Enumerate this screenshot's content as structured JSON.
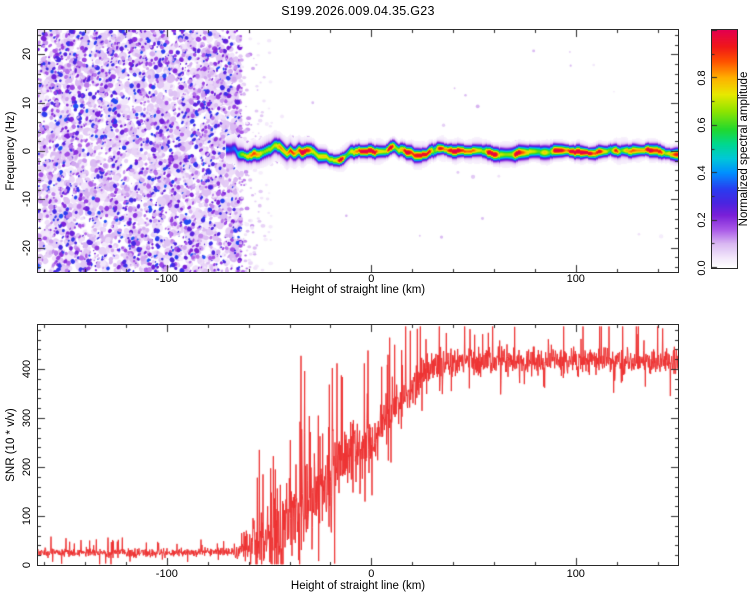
{
  "figure": {
    "title": "S199.2026.009.04.35.G23",
    "background": "#ffffff"
  },
  "colors": {
    "snr_line": "#ee3333",
    "axis": "#2a2a2a",
    "text": "#000000"
  },
  "render_seed": 20260409,
  "chart_data": [
    {
      "id": "doppler-spectrogram",
      "type": "heatmap",
      "xlabel": "Height of straight line (km)",
      "ylabel": "Frequency (Hz)",
      "xlim": [
        -163,
        150
      ],
      "ylim": [
        -25,
        25
      ],
      "xticks": [
        {
          "value": -100,
          "label": "-100"
        },
        {
          "value": 0,
          "label": "0"
        },
        {
          "value": 100,
          "label": "100"
        }
      ],
      "yticks": [
        {
          "value": -20,
          "label": "-20"
        },
        {
          "value": -10,
          "label": "-10"
        },
        {
          "value": 0,
          "label": "0"
        },
        {
          "value": 10,
          "label": "10"
        },
        {
          "value": 20,
          "label": "20"
        }
      ],
      "x_minor_step": 20,
      "y_minor_step": 2,
      "colorbar": {
        "label": "Normalized spectral amplitude",
        "range": [
          0,
          1
        ],
        "ticks": [
          {
            "value": 0.0,
            "label": "0.0"
          },
          {
            "value": 0.2,
            "label": "0.2"
          },
          {
            "value": 0.4,
            "label": "0.4"
          },
          {
            "value": 0.6,
            "label": "0.6"
          },
          {
            "value": 0.8,
            "label": "0.8"
          }
        ],
        "minor_step": 0.1
      },
      "colormap_stops": [
        [
          0.0,
          "#ffffff"
        ],
        [
          0.04,
          "#f3e8fb"
        ],
        [
          0.1,
          "#d9b8f2"
        ],
        [
          0.16,
          "#a958e8"
        ],
        [
          0.22,
          "#7a1fd8"
        ],
        [
          0.27,
          "#4b24e0"
        ],
        [
          0.33,
          "#2a3cf0"
        ],
        [
          0.4,
          "#0090ff"
        ],
        [
          0.46,
          "#00c8d8"
        ],
        [
          0.52,
          "#00d890"
        ],
        [
          0.58,
          "#20d830"
        ],
        [
          0.66,
          "#90e400"
        ],
        [
          0.73,
          "#e8e800"
        ],
        [
          0.8,
          "#ffb000"
        ],
        [
          0.87,
          "#ff5000"
        ],
        [
          0.93,
          "#f01818"
        ],
        [
          1.0,
          "#e4004e"
        ]
      ],
      "noise_field": {
        "x_range": [
          -163,
          -64
        ],
        "edge_fade_x_range": [
          -64,
          -48
        ],
        "amplitude_range": [
          0.02,
          0.35
        ]
      },
      "signal_trace": {
        "x_range": [
          -71,
          150
        ],
        "center_frequency_hz": 0,
        "wiggle_amplitude_hz": 1.4,
        "wiggle_decay_to_hz": 0.5,
        "core_sigma_hz": 0.65,
        "halo_sigma_hz": 1.9,
        "amplitude_profile": [
          [
            -71,
            0.3
          ],
          [
            -65,
            0.45
          ],
          [
            -60,
            0.62
          ],
          [
            -56,
            0.78
          ],
          [
            -50,
            0.85
          ],
          [
            -30,
            0.88
          ],
          [
            0,
            0.9
          ],
          [
            150,
            0.9
          ]
        ]
      }
    },
    {
      "id": "snr-profile",
      "type": "line",
      "line_color": "#ee3333",
      "xlabel": "Height of straight line (km)",
      "ylabel": "SNR (10 * v/v)",
      "xlim": [
        -163,
        150
      ],
      "ylim": [
        0,
        490
      ],
      "xticks": [
        {
          "value": -100,
          "label": "-100"
        },
        {
          "value": 0,
          "label": "0"
        },
        {
          "value": 100,
          "label": "100"
        }
      ],
      "yticks": [
        {
          "value": 0,
          "label": "0"
        },
        {
          "value": 100,
          "label": "100"
        },
        {
          "value": 200,
          "label": "200"
        },
        {
          "value": 300,
          "label": "300"
        },
        {
          "value": 400,
          "label": "400"
        }
      ],
      "x_minor_step": 20,
      "y_minor_step": 20,
      "mean_profile": [
        [
          -163,
          25
        ],
        [
          -100,
          25
        ],
        [
          -66,
          27
        ],
        [
          -58,
          45
        ],
        [
          -52,
          60
        ],
        [
          -46,
          72
        ],
        [
          -40,
          95
        ],
        [
          -34,
          120
        ],
        [
          -28,
          148
        ],
        [
          -22,
          172
        ],
        [
          -16,
          195
        ],
        [
          -10,
          220
        ],
        [
          -4,
          245
        ],
        [
          2,
          268
        ],
        [
          8,
          298
        ],
        [
          14,
          330
        ],
        [
          20,
          362
        ],
        [
          26,
          393
        ],
        [
          32,
          408
        ],
        [
          40,
          416
        ],
        [
          150,
          416
        ]
      ],
      "noise_amplitude_profile": [
        [
          -163,
          11
        ],
        [
          -68,
          11
        ],
        [
          -60,
          55
        ],
        [
          -52,
          85
        ],
        [
          -44,
          100
        ],
        [
          -36,
          110
        ],
        [
          -28,
          112
        ],
        [
          -20,
          110
        ],
        [
          -12,
          85
        ],
        [
          -4,
          72
        ],
        [
          4,
          62
        ],
        [
          12,
          55
        ],
        [
          20,
          48
        ],
        [
          28,
          40
        ],
        [
          36,
          34
        ],
        [
          150,
          32
        ]
      ],
      "spikes": [
        [
          -55,
          235
        ],
        [
          -47,
          195
        ],
        [
          -40,
          255
        ],
        [
          -33,
          270
        ],
        [
          -26,
          305
        ],
        [
          -19,
          402
        ],
        [
          -2,
          350
        ],
        [
          57,
          474
        ]
      ],
      "dips": [
        [
          -56,
          15
        ],
        [
          -50,
          6
        ],
        [
          -44,
          12
        ],
        [
          -36,
          10
        ],
        [
          -26,
          8
        ],
        [
          -18,
          3
        ]
      ]
    }
  ]
}
